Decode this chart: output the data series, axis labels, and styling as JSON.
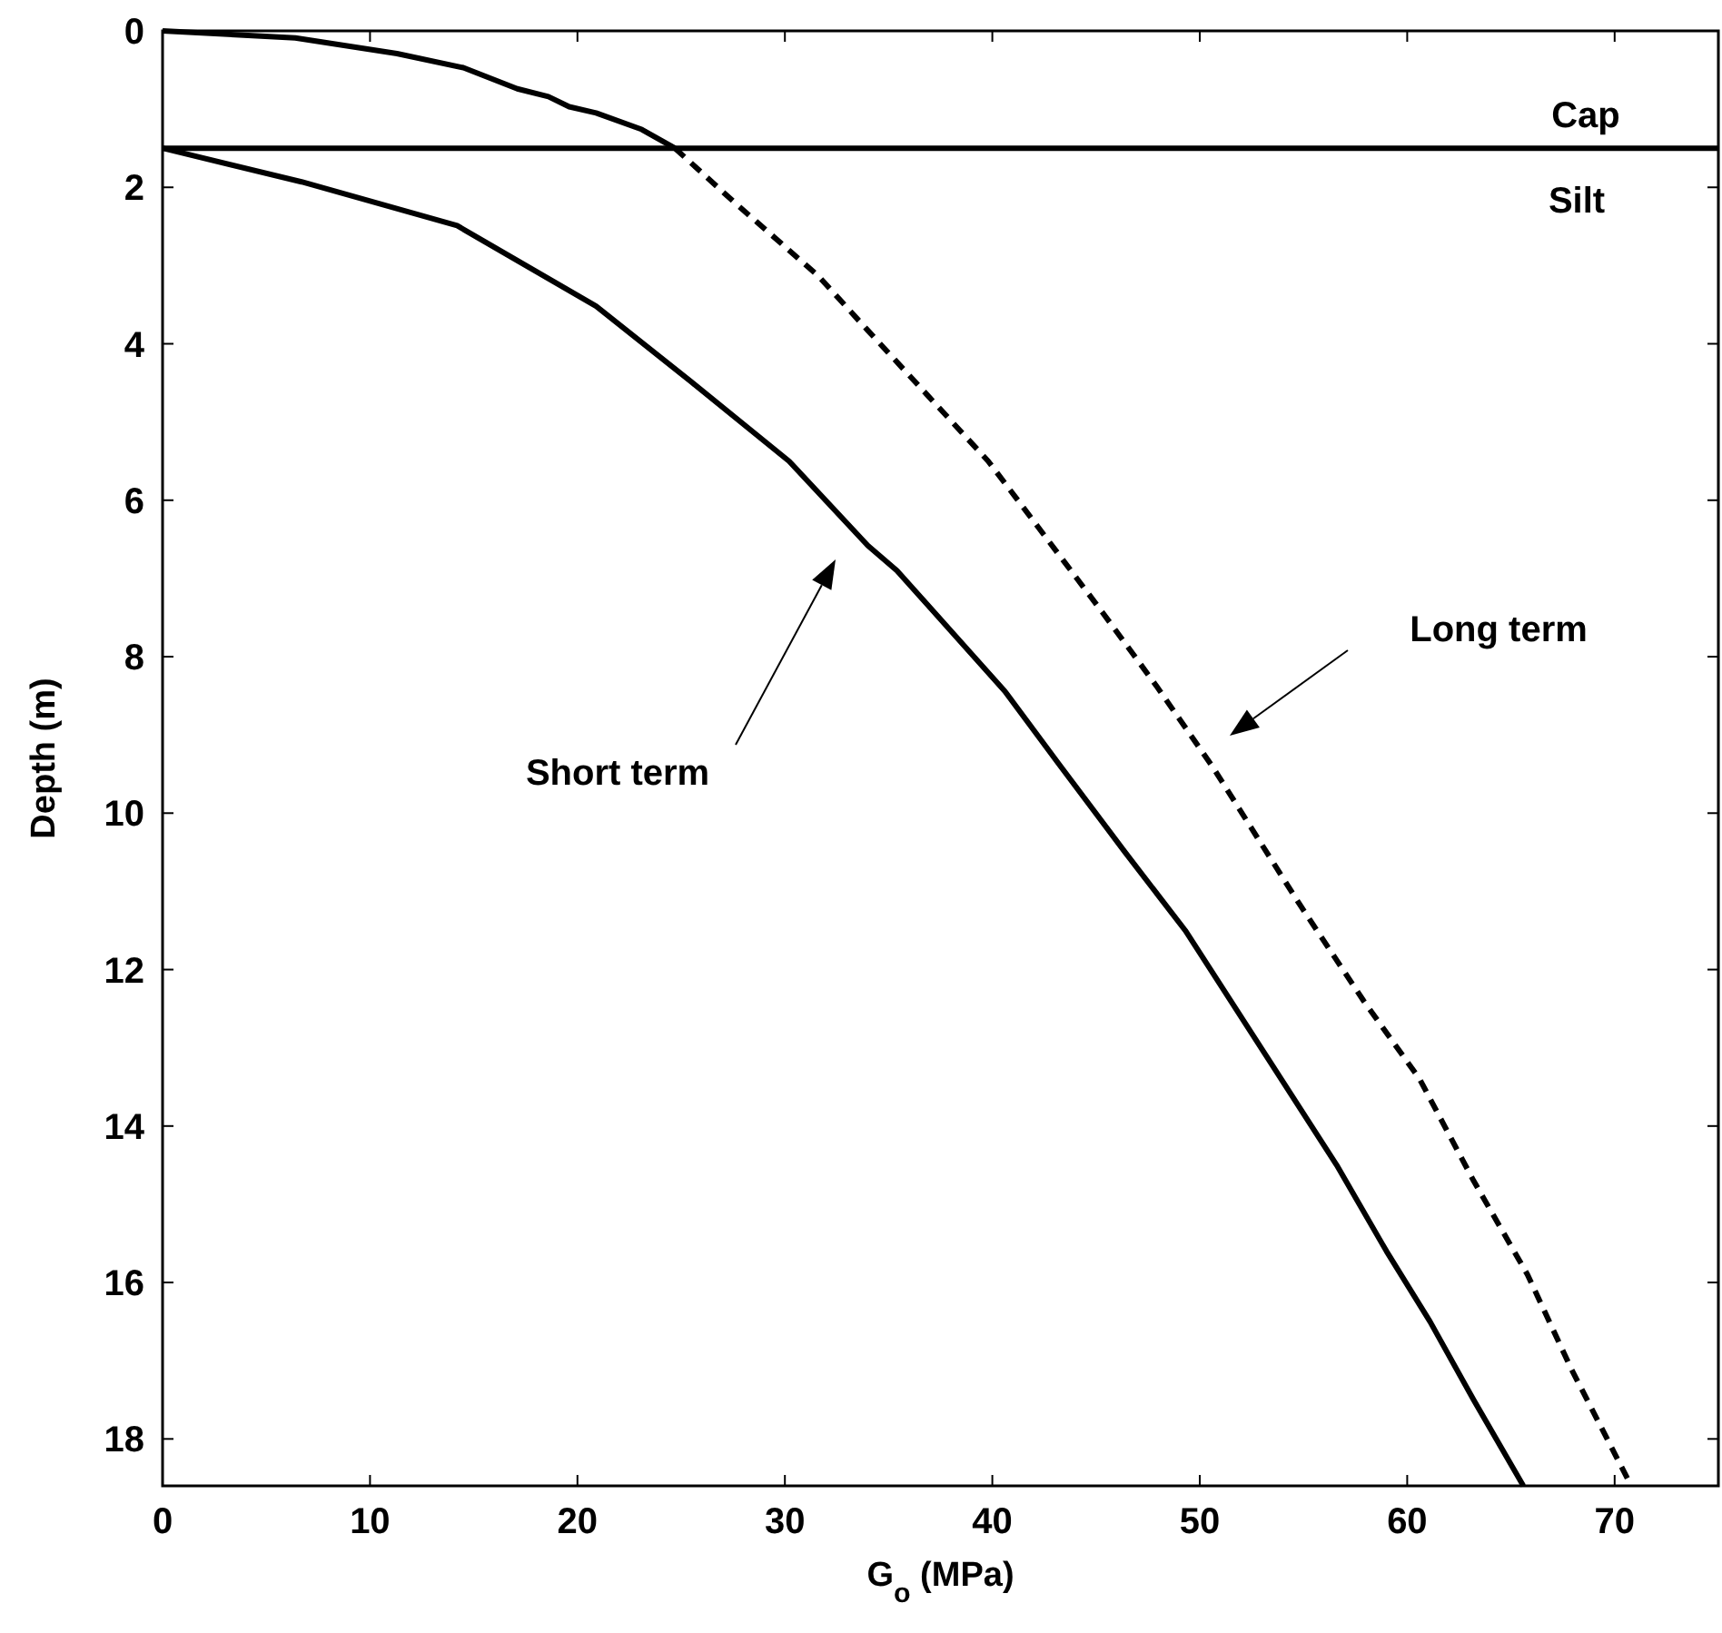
{
  "chart_data": {
    "type": "line",
    "xlabel": "G$_{o}$ (MPa)",
    "ylabel": "Depth (m)",
    "xlim": [
      0,
      75
    ],
    "ylim": [
      18.6,
      0
    ],
    "xticks": [
      0,
      10,
      20,
      30,
      40,
      50,
      60,
      70
    ],
    "yticks": [
      0,
      2,
      4,
      6,
      8,
      10,
      12,
      14,
      16,
      18
    ],
    "grid": false,
    "marker": "none",
    "series": [
      {
        "color": "#000000",
        "line_style": "solid",
        "x": [
          0,
          6.4,
          11.3,
          14.5,
          17.1,
          18.6,
          19.6,
          20.9,
          23.1,
          24.7
        ],
        "values": [
          0,
          0.09,
          0.29,
          0.47,
          0.74,
          0.84,
          0.97,
          1.05,
          1.26,
          1.5
        ]
      },
      {
        "color": "#000000",
        "line_style": "dashed",
        "x": [
          24.7,
          27.6,
          31.6,
          34.0,
          39.8,
          41.8,
          45.3,
          47.9,
          50.6,
          54.8,
          57.9,
          60.6,
          63.2,
          65.8,
          67.9,
          70.8
        ],
        "values": [
          1.5,
          2.2,
          3.13,
          3.83,
          5.5,
          6.2,
          7.43,
          8.37,
          9.4,
          11.16,
          12.4,
          13.4,
          14.7,
          15.9,
          17.1,
          18.6
        ]
      },
      {
        "color": "#000000",
        "line_style": "solid",
        "x": [
          0,
          6.7,
          14.2,
          20.9,
          25.5,
          30.2,
          34.0,
          35.4,
          40.6,
          43.2,
          46.4,
          49.3,
          53.2,
          56.6,
          59.0,
          61.1,
          63.2,
          65.6
        ],
        "values": [
          1.5,
          1.93,
          2.49,
          3.52,
          4.49,
          5.5,
          6.58,
          6.9,
          8.44,
          9.37,
          10.5,
          11.5,
          13.1,
          14.5,
          15.6,
          16.5,
          17.5,
          18.6
        ]
      }
    ],
    "ref_lines": [
      {
        "axis": "y",
        "value": 1.5,
        "color": "#000000"
      }
    ],
    "annotations": [
      "Cap",
      "Silt",
      "Long term",
      "Short term"
    ]
  }
}
